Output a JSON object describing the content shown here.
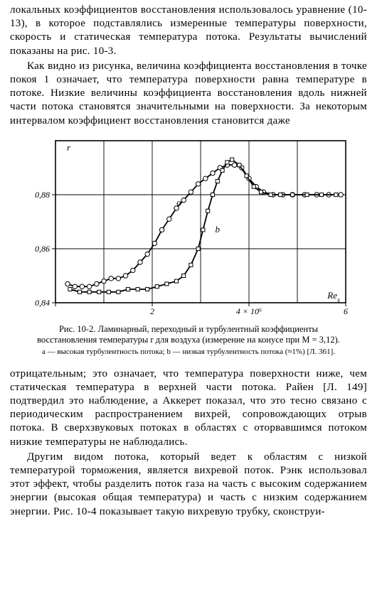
{
  "para1": "локальных коэффициентов восстановления использовалось уравнение (10-13), в которое подставлялись измеренные температуры поверхности, скорость и статическая температура потока. Результаты вычислений показаны на рис. 10-3.",
  "para2": "Как видно из рисунка, величина коэффициента восстановления в точке покоя 1 означает, что температура поверхности равна температуре в потоке. Низкие величины коэффициента восстановления вдоль нижней части потока становятся значительными на поверхности. За некоторым интервалом коэффициент восстановления становится даже",
  "para3": "отрицательным; это означает, что температура поверхности ниже, чем статическая температура в верхней части потока. Райен [Л. 149] подтвердил это наблюдение, а Аккерет показал, что это тесно связано с периодическим распространением вихрей, сопровождающих отрыв потока. В сверхзвуковых потоках в областях с оторвавшимся потоком низкие температуры не наблюдались.",
  "para4": "Другим видом потока, который ведет к областям с низкой температурой торможения, является вихревой поток. Рэнк использовал этот эффект, чтобы разделить поток газа на часть с высоким содержанием энергии (высокая общая температура) и часть с низким содержанием энергии. Рис. 10-4 показывает такую вихревую трубку, сконструи-",
  "caption_main": "Рис. 10-2. Ламинарный, переходный и турбулентный коэффициенты восстановления температуры r для воздуха (измерение на конусе при M = 3,12).",
  "caption_sub": "a — высокая турбулентность потока; b — низкая турбулентность потока (≈1%) [Л. 361].",
  "chart": {
    "type": "line+scatter",
    "background_color": "#ffffff",
    "axis_color": "#000000",
    "grid_color": "#000000",
    "grid_width": 0.9,
    "axis_width": 1.6,
    "y_axis_label": "r",
    "y_label_fontsize": 13,
    "y_label_style": "italic",
    "x_axis_label_exp": "Re",
    "x_axis_label_sub": "x",
    "x_label_fontsize": 13,
    "x_label_style": "italic",
    "xlim": [
      0,
      6
    ],
    "ylim": [
      0.84,
      0.9
    ],
    "xticks": [
      0,
      2,
      4,
      6
    ],
    "xtick_labels": [
      "",
      "2",
      "4 × 10⁶",
      "6"
    ],
    "yticks": [
      0.84,
      0.86,
      0.88
    ],
    "ytick_labels": [
      "0,84",
      "0,86",
      "0,88"
    ],
    "tick_fontsize": 12,
    "series_a": {
      "label": "a",
      "label_fontsize": 13,
      "marker": "circle",
      "marker_size": 3.2,
      "marker_fill": "#ffffff",
      "marker_stroke": "#000000",
      "line_color": "#000000",
      "line_width": 1.8,
      "points": [
        [
          0.25,
          0.847
        ],
        [
          0.4,
          0.846
        ],
        [
          0.55,
          0.846
        ],
        [
          0.7,
          0.846
        ],
        [
          0.85,
          0.847
        ],
        [
          1.0,
          0.848
        ],
        [
          1.15,
          0.849
        ],
        [
          1.3,
          0.849
        ],
        [
          1.45,
          0.85
        ],
        [
          1.6,
          0.852
        ],
        [
          1.75,
          0.855
        ],
        [
          1.9,
          0.858
        ],
        [
          2.05,
          0.862
        ],
        [
          2.2,
          0.867
        ],
        [
          2.35,
          0.871
        ],
        [
          2.5,
          0.875
        ],
        [
          2.65,
          0.878
        ],
        [
          2.8,
          0.881
        ],
        [
          2.95,
          0.884
        ],
        [
          3.1,
          0.886
        ],
        [
          3.25,
          0.888
        ],
        [
          3.4,
          0.89
        ],
        [
          3.55,
          0.891
        ],
        [
          3.7,
          0.891
        ],
        [
          3.85,
          0.89
        ],
        [
          4.0,
          0.886
        ],
        [
          4.15,
          0.883
        ],
        [
          4.3,
          0.881
        ],
        [
          4.5,
          0.88
        ],
        [
          4.7,
          0.88
        ],
        [
          4.9,
          0.88
        ],
        [
          5.15,
          0.88
        ],
        [
          5.4,
          0.88
        ],
        [
          5.65,
          0.88
        ],
        [
          5.9,
          0.88
        ]
      ]
    },
    "series_b": {
      "label": "b",
      "label_fontsize": 13,
      "marker": "square",
      "marker_size": 3.0,
      "marker_fill": "#ffffff",
      "marker_stroke": "#000000",
      "line_color": "#000000",
      "line_width": 1.8,
      "points": [
        [
          0.3,
          0.845
        ],
        [
          0.5,
          0.844
        ],
        [
          0.7,
          0.844
        ],
        [
          0.9,
          0.844
        ],
        [
          1.1,
          0.844
        ],
        [
          1.3,
          0.844
        ],
        [
          1.5,
          0.845
        ],
        [
          1.7,
          0.845
        ],
        [
          1.9,
          0.845
        ],
        [
          2.1,
          0.846
        ],
        [
          2.3,
          0.847
        ],
        [
          2.5,
          0.848
        ],
        [
          2.65,
          0.85
        ],
        [
          2.8,
          0.854
        ],
        [
          2.95,
          0.86
        ],
        [
          3.05,
          0.867
        ],
        [
          3.15,
          0.874
        ],
        [
          3.25,
          0.88
        ],
        [
          3.35,
          0.885
        ],
        [
          3.45,
          0.889
        ],
        [
          3.55,
          0.892
        ],
        [
          3.65,
          0.893
        ],
        [
          3.8,
          0.891
        ],
        [
          3.95,
          0.887
        ],
        [
          4.1,
          0.883
        ],
        [
          4.25,
          0.881
        ],
        [
          4.45,
          0.88
        ],
        [
          4.65,
          0.88
        ],
        [
          4.9,
          0.88
        ],
        [
          5.2,
          0.88
        ],
        [
          5.5,
          0.88
        ],
        [
          5.8,
          0.88
        ]
      ]
    },
    "annotation_a_pos": [
      2.55,
      0.876
    ],
    "annotation_b_pos": [
      3.35,
      0.866
    ]
  }
}
